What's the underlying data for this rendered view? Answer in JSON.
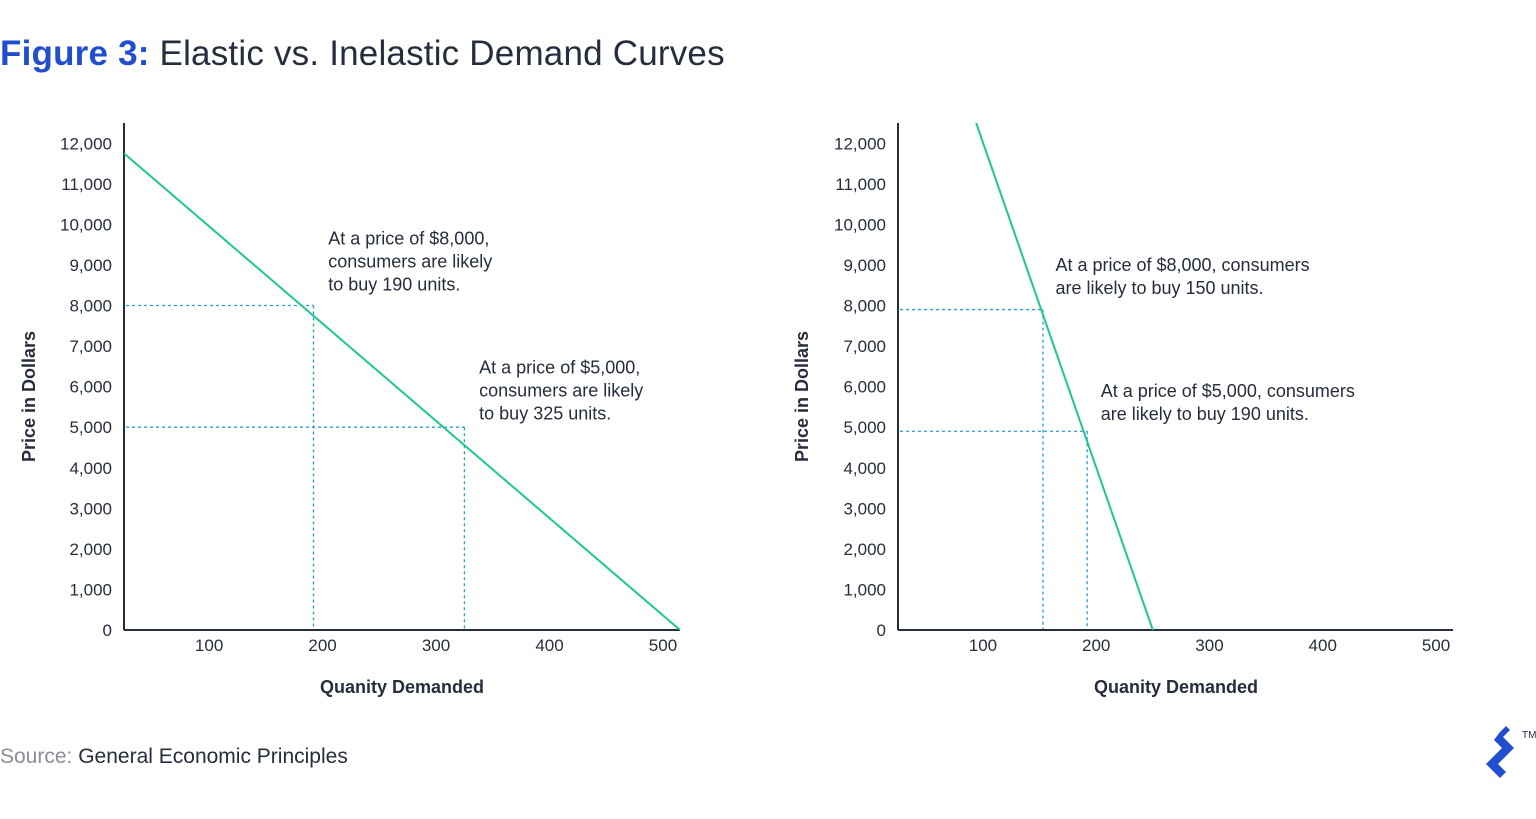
{
  "title": {
    "figure_label": "Figure 3:",
    "text": "Elastic vs. Inelastic Demand Curves"
  },
  "source": {
    "label": "Source:",
    "text": "General Economic Principles"
  },
  "colors": {
    "accent": "#204ecf",
    "curve": "#1fc78f",
    "guide": "#2b9bdb",
    "axis": "#262d3d"
  },
  "logo": {
    "icon": "toptal-logo-icon",
    "trademark": "TM"
  },
  "chart_data": [
    {
      "type": "line",
      "ylabel": "Price in Dollars",
      "xlabel": "Quanity Demanded",
      "xlim": [
        25,
        515
      ],
      "ylim": [
        0,
        12500
      ],
      "x_ticks": [
        "100",
        "200",
        "300",
        "400",
        "500"
      ],
      "x_tick_values": [
        100,
        200,
        300,
        400,
        500
      ],
      "y_ticks": [
        "0",
        "1,000",
        "2,000",
        "3,000",
        "4,000",
        "5,000",
        "6,000",
        "7,000",
        "8,000",
        "9,000",
        "10,000",
        "11,000",
        "12,000"
      ],
      "y_tick_values": [
        0,
        1000,
        2000,
        3000,
        4000,
        5000,
        6000,
        7000,
        8000,
        9000,
        10000,
        11000,
        12000
      ],
      "series": [
        {
          "x": [
            25,
            515
          ],
          "y": [
            11750,
            0
          ]
        }
      ],
      "guides": [
        {
          "x": 192,
          "y": 8000
        },
        {
          "x": 325,
          "y": 5000
        }
      ],
      "annotations": [
        {
          "lines": [
            "At a price of $8,000,",
            "consumers are likely",
            "to buy 190 units."
          ],
          "x": 205,
          "y": 9500
        },
        {
          "lines": [
            "At a price of $5,000,",
            "consumers are likely",
            "to buy 325 units."
          ],
          "x": 338,
          "y": 6330
        }
      ]
    },
    {
      "type": "line",
      "ylabel": "Price in Dollars",
      "xlabel": "Quanity Demanded",
      "xlim": [
        25,
        515
      ],
      "ylim": [
        0,
        12500
      ],
      "x_ticks": [
        "100",
        "200",
        "300",
        "400",
        "500"
      ],
      "x_tick_values": [
        100,
        200,
        300,
        400,
        500
      ],
      "y_ticks": [
        "0",
        "1,000",
        "2,000",
        "3,000",
        "4,000",
        "5,000",
        "6,000",
        "7,000",
        "8,000",
        "9,000",
        "10,000",
        "11,000",
        "12,000"
      ],
      "y_tick_values": [
        0,
        1000,
        2000,
        3000,
        4000,
        5000,
        6000,
        7000,
        8000,
        9000,
        10000,
        11000,
        12000
      ],
      "series": [
        {
          "x": [
            94,
            250
          ],
          "y": [
            12500,
            0
          ]
        }
      ],
      "guides": [
        {
          "x": 153,
          "y": 7900
        },
        {
          "x": 192,
          "y": 4900
        }
      ],
      "annotations": [
        {
          "lines": [
            "At a price of $8,000, consumers",
            "are likely to buy 150 units."
          ],
          "x": 164,
          "y": 8850
        },
        {
          "lines": [
            "At a price of $5,000, consumers",
            "are likely to buy 190 units."
          ],
          "x": 204,
          "y": 5750
        }
      ]
    }
  ]
}
